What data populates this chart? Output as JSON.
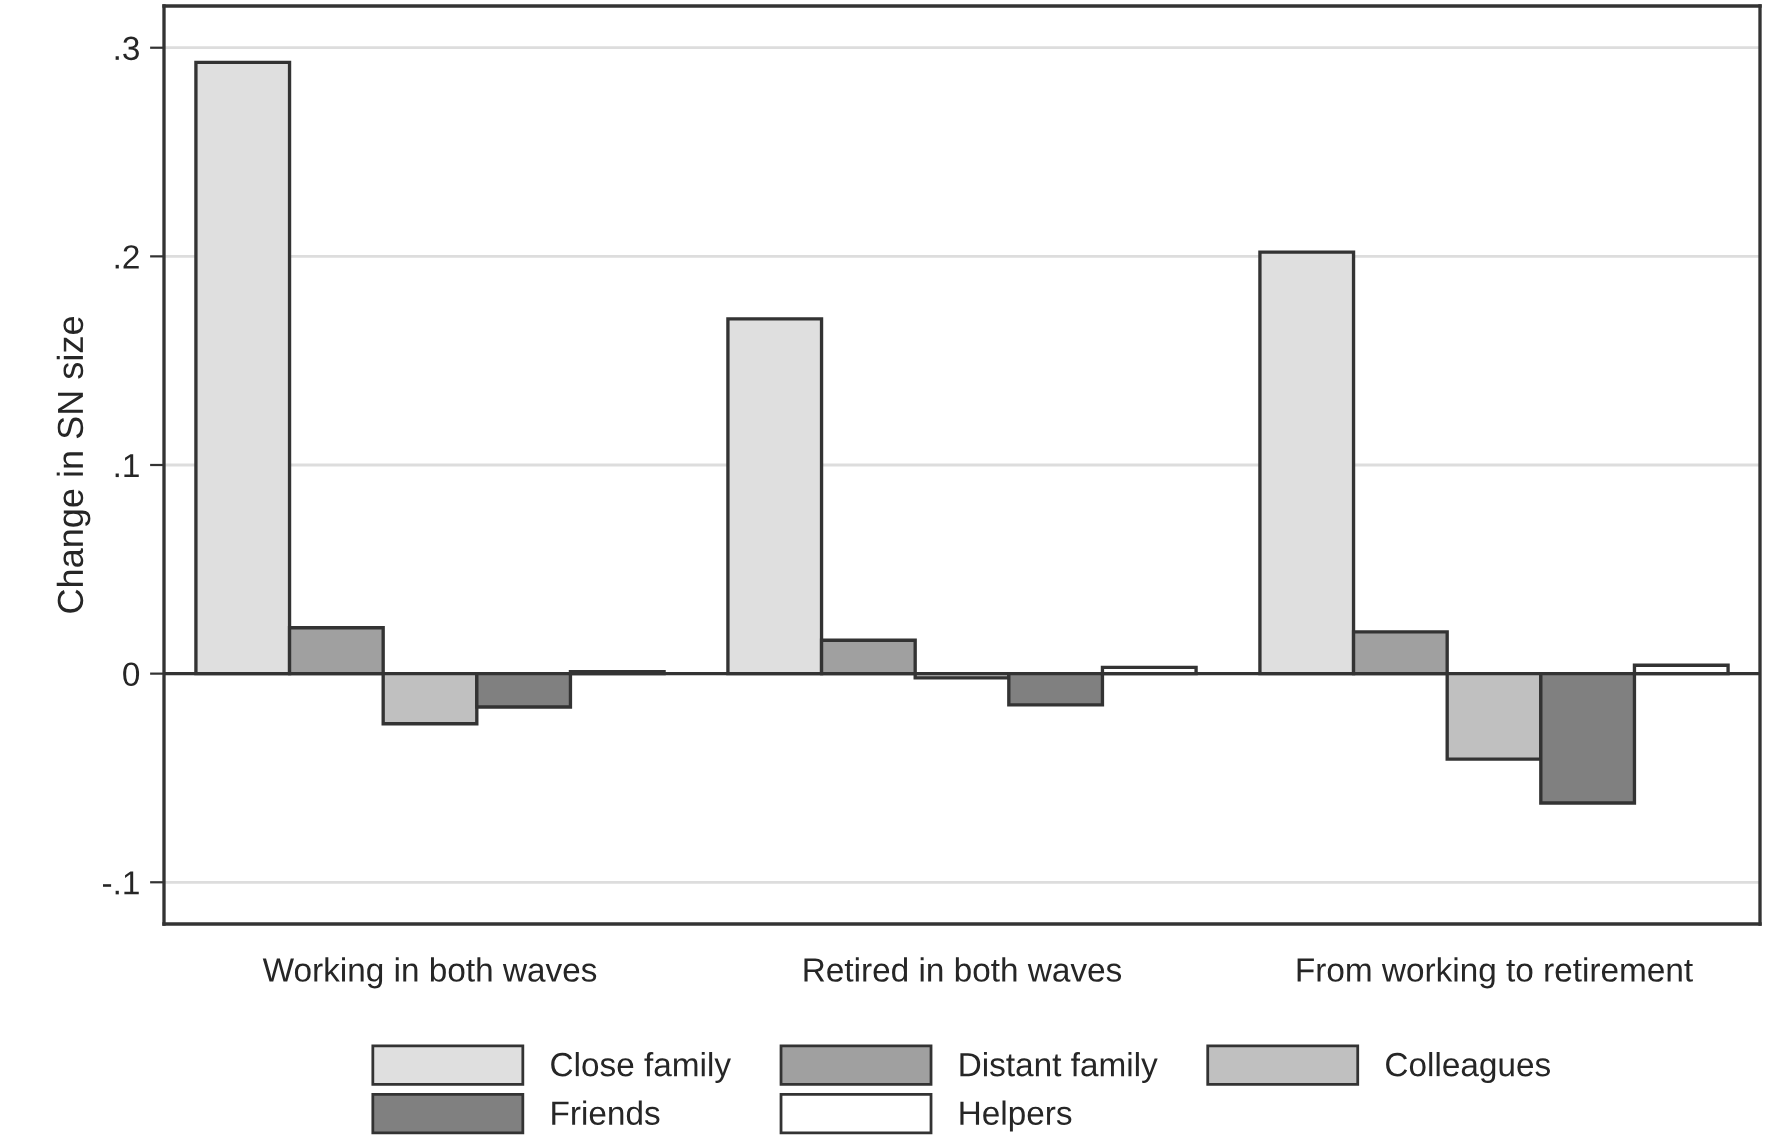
{
  "chart_data": {
    "type": "bar",
    "ylabel": "Change in SN size",
    "categories": [
      "Working in both waves",
      "Retired in both waves",
      "From working to retirement"
    ],
    "series": [
      {
        "name": "Close family",
        "color": "#dfdfdf",
        "values": [
          0.293,
          0.17,
          0.202
        ]
      },
      {
        "name": "Distant family",
        "color": "#a0a0a0",
        "values": [
          0.022,
          0.016,
          0.02
        ]
      },
      {
        "name": "Colleagues",
        "color": "#c0c0c0",
        "values": [
          -0.024,
          -0.002,
          -0.041
        ]
      },
      {
        "name": "Friends",
        "color": "#808080",
        "values": [
          -0.016,
          -0.015,
          -0.062
        ]
      },
      {
        "name": "Helpers",
        "color": "#ffffff",
        "values": [
          0.001,
          0.003,
          0.004
        ]
      }
    ],
    "ylim": [
      -0.12,
      0.32
    ],
    "yticks": [
      {
        "value": -0.1,
        "label": "-.1"
      },
      {
        "value": 0,
        "label": "0"
      },
      {
        "value": 0.1,
        "label": ".1"
      },
      {
        "value": 0.2,
        "label": ".2"
      },
      {
        "value": 0.3,
        "label": ".3"
      }
    ],
    "grid": "y",
    "legend": "bottom"
  }
}
